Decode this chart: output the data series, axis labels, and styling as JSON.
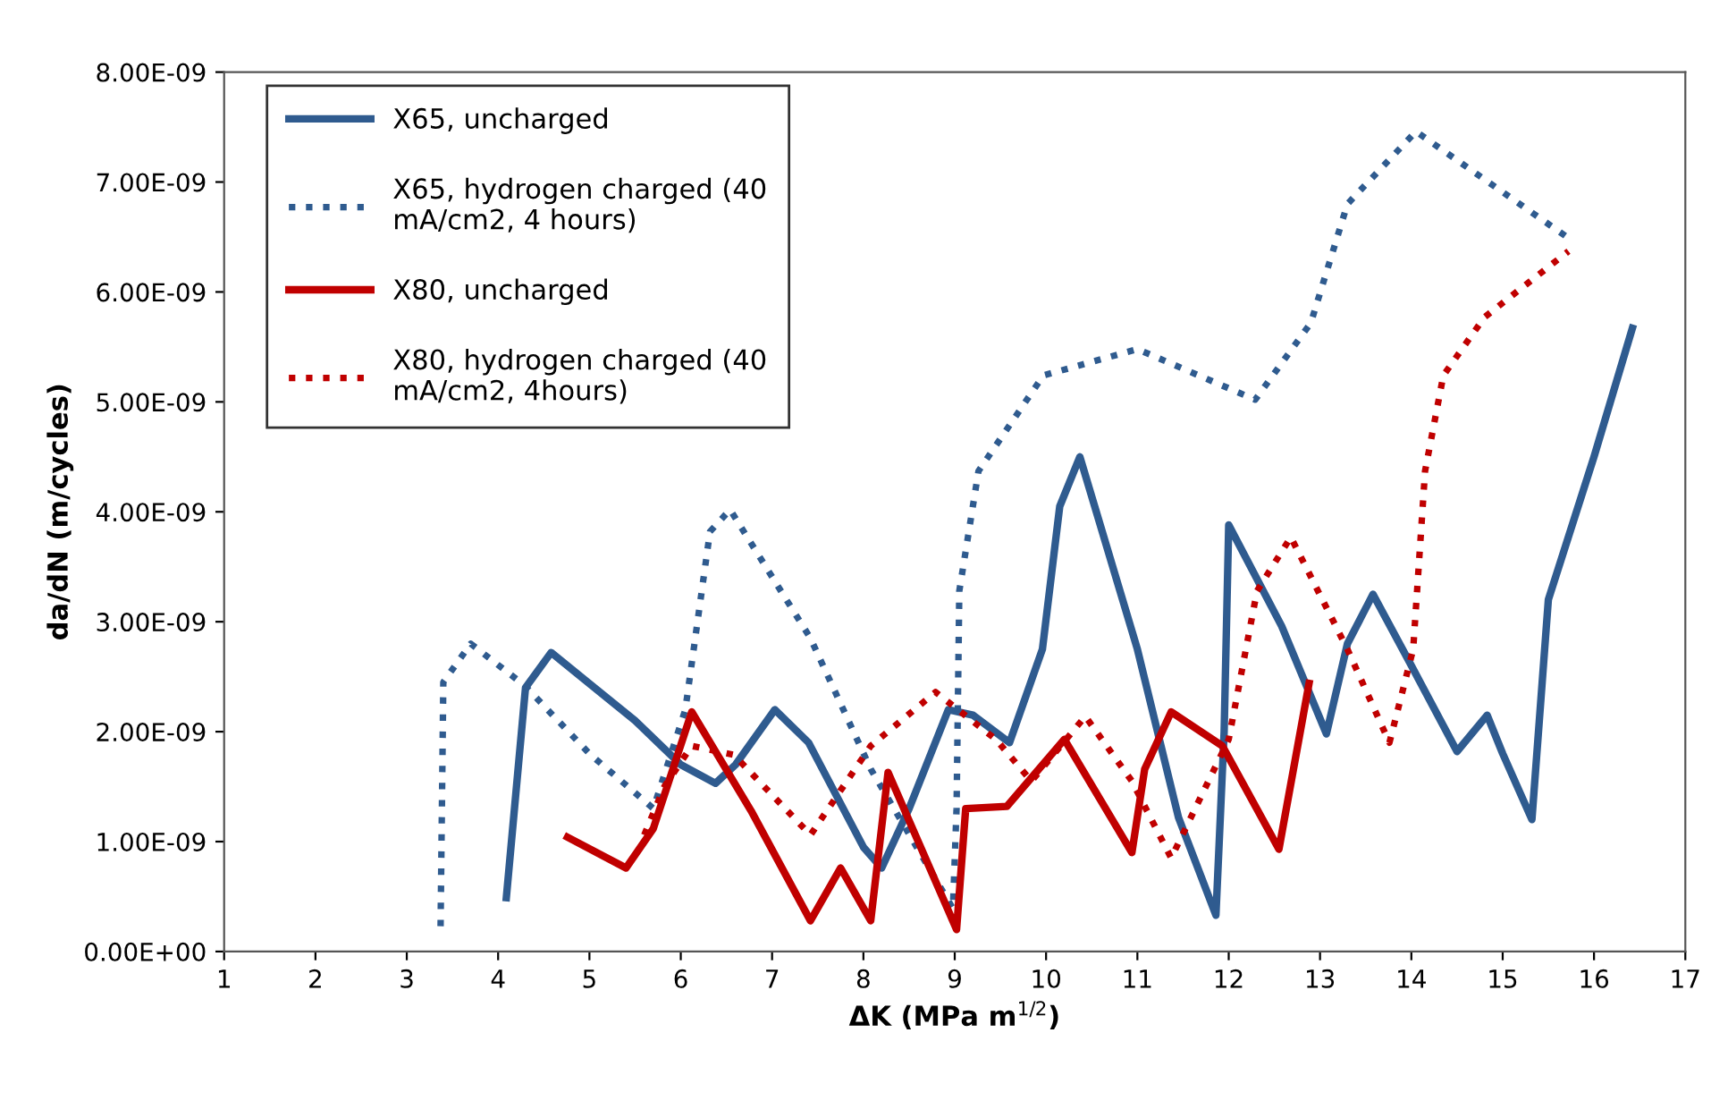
{
  "chart_data": {
    "type": "line",
    "xlabel": "ΔK (MPa m$^{1/2}$)",
    "ylabel": "da/dN (m/cycles)",
    "xlim": [
      1,
      17
    ],
    "xticks": [
      1,
      2,
      3,
      4,
      5,
      6,
      7,
      8,
      9,
      10,
      11,
      12,
      13,
      14,
      15,
      16,
      17
    ],
    "ylim": [
      0,
      8e-09
    ],
    "yticks": [
      {
        "value": 0,
        "label": "0.00E+00"
      },
      {
        "value": 1e-09,
        "label": "1.00E-09"
      },
      {
        "value": 2e-09,
        "label": "2.00E-09"
      },
      {
        "value": 3e-09,
        "label": "3.00E-09"
      },
      {
        "value": 4e-09,
        "label": "4.00E-09"
      },
      {
        "value": 5e-09,
        "label": "5.00E-09"
      },
      {
        "value": 6e-09,
        "label": "6.00E-09"
      },
      {
        "value": 7e-09,
        "label": "7.00E-09"
      },
      {
        "value": 8e-09,
        "label": "8.00E-09"
      }
    ],
    "grid": false,
    "legend": "top left",
    "marker": "none",
    "series": [
      {
        "name": "X65, uncharged",
        "color": "#2f5b8f",
        "line_style": "solid",
        "x": [
          4.09,
          4.3,
          4.58,
          5.5,
          6.0,
          6.38,
          6.6,
          7.03,
          7.4,
          8.0,
          8.2,
          8.5,
          8.93,
          9.2,
          9.6,
          9.96,
          10.15,
          10.37,
          11.0,
          11.45,
          11.86,
          11.95,
          12.0,
          12.58,
          13.07,
          13.3,
          13.58,
          14.0,
          14.5,
          14.83,
          15.0,
          15.32,
          15.5,
          16.0,
          16.42
        ],
        "values": [
          4.9e-10,
          2.4e-09,
          2.72e-09,
          2.1e-09,
          1.7e-09,
          1.53e-09,
          1.7e-09,
          2.2e-09,
          1.9e-09,
          9.5e-10,
          7.6e-10,
          1.3e-09,
          2.2e-09,
          2.15e-09,
          1.9e-09,
          2.75e-09,
          4.05e-09,
          4.5e-09,
          2.75e-09,
          1.22e-09,
          3.3e-10,
          2e-09,
          3.88e-09,
          2.96e-09,
          1.98e-09,
          2.8e-09,
          3.25e-09,
          2.6e-09,
          1.82e-09,
          2.15e-09,
          1.8e-09,
          1.2e-09,
          3.2e-09,
          4.5e-09,
          5.67e-09
        ]
      },
      {
        "name": "X65, hydrogen charged (40\nmA/cm2, 4 hours)",
        "color": "#2f5b8f",
        "line_style": "dotted",
        "x": [
          3.37,
          3.4,
          3.7,
          4.29,
          5.0,
          5.7,
          6.05,
          6.32,
          6.54,
          7.42,
          8.08,
          8.98,
          9.02,
          9.05,
          9.26,
          9.97,
          11.0,
          12.29,
          12.9,
          13.3,
          14.05,
          15.72
        ],
        "values": [
          2.3e-10,
          2.45e-09,
          2.8e-09,
          2.42e-09,
          1.8e-09,
          1.3e-09,
          2.2e-09,
          3.82e-09,
          4.02e-09,
          2.85e-09,
          1.66e-09,
          3.9e-10,
          1.3e-09,
          3.28e-09,
          4.37e-09,
          5.24e-09,
          5.48e-09,
          5.02e-09,
          5.72e-09,
          6.8e-09,
          7.46e-09,
          6.49e-09
        ]
      },
      {
        "name": "X80, uncharged",
        "color": "#c00000",
        "line_style": "solid",
        "x": [
          4.76,
          5.4,
          5.7,
          6.12,
          6.77,
          7.42,
          7.75,
          8.08,
          8.27,
          9.02,
          9.12,
          9.57,
          10.2,
          10.94,
          11.08,
          11.37,
          11.93,
          12.55,
          12.88
        ],
        "values": [
          1.04e-09,
          7.6e-10,
          1.12e-09,
          2.18e-09,
          1.28e-09,
          2.8e-10,
          7.6e-10,
          2.8e-10,
          1.63e-09,
          2e-10,
          1.3e-09,
          1.32e-09,
          1.93e-09,
          9e-10,
          1.66e-09,
          2.18e-09,
          1.87e-09,
          9.3e-10,
          2.44e-09
        ]
      },
      {
        "name": "X80, hydrogen charged (40\nmA/cm2, 4hours)",
        "color": "#c00000",
        "line_style": "dotted",
        "x": [
          5.6,
          5.82,
          6.12,
          6.58,
          7.42,
          8.08,
          8.79,
          9.45,
          9.84,
          10.43,
          10.94,
          11.37,
          12.0,
          12.31,
          12.68,
          13.3,
          13.76,
          14.02,
          14.15,
          14.35,
          14.8,
          15.72
        ],
        "values": [
          1.06e-09,
          1.5e-09,
          1.87e-09,
          1.79e-09,
          1.06e-09,
          1.87e-09,
          2.36e-09,
          1.93e-09,
          1.55e-09,
          2.14e-09,
          1.55e-09,
          8.5e-10,
          1.93e-09,
          3.28e-09,
          3.77e-09,
          2.75e-09,
          1.9e-09,
          2.75e-09,
          4.37e-09,
          5.24e-09,
          5.77e-09,
          6.37e-09
        ]
      }
    ]
  }
}
